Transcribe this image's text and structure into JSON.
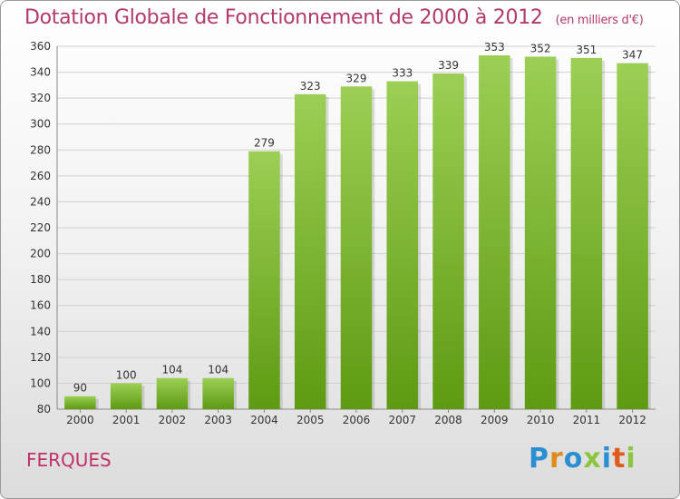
{
  "header": {
    "title": "Dotation Globale de Fonctionnement de 2000 à 2012",
    "unit": "(en milliers d'€)"
  },
  "footer": {
    "commune": "FERQUES",
    "logo_letters": [
      "P",
      "r",
      "o",
      "x",
      "i",
      "t",
      "i"
    ]
  },
  "colors": {
    "title": "#b23a6a",
    "bar_top": "#9ccf55",
    "bar_bottom": "#5e9a12",
    "grid": "#d0d0d0"
  },
  "chart_data": {
    "type": "bar",
    "title": "Dotation Globale de Fonctionnement de 2000 à 2012",
    "subtitle": "(en milliers d'€)",
    "categories": [
      "2000",
      "2001",
      "2002",
      "2003",
      "2004",
      "2005",
      "2006",
      "2007",
      "2008",
      "2009",
      "2010",
      "2011",
      "2012"
    ],
    "values": [
      90,
      100,
      104,
      104,
      279,
      323,
      329,
      333,
      339,
      353,
      352,
      351,
      347
    ],
    "ylim": [
      80,
      360
    ],
    "yticks": [
      80,
      100,
      120,
      140,
      160,
      180,
      200,
      220,
      240,
      260,
      280,
      300,
      320,
      340,
      360
    ],
    "grid": true,
    "data_labels": true
  }
}
